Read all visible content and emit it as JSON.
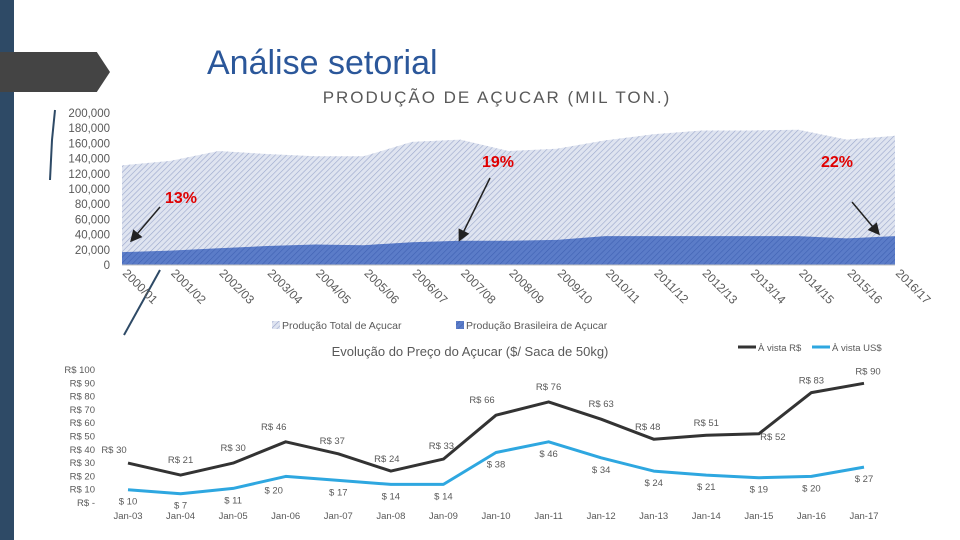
{
  "slide": {
    "title": "Análise setorial"
  },
  "colors": {
    "total": "#b8c2dd",
    "brazil": "#4f72c4",
    "avista_rs": "#333333",
    "avista_us": "#2ea7e0",
    "pct": "#e00000",
    "title": "#2b579a"
  },
  "chart_data": [
    {
      "type": "area",
      "title": "PRODUÇÃO DE AÇUCAR (MIL TON.)",
      "categories": [
        "2000/01",
        "2001/02",
        "2002/03",
        "2003/04",
        "2004/05",
        "2005/06",
        "2006/07",
        "2007/08",
        "2008/09",
        "2009/10",
        "2010/11",
        "2011/12",
        "2012/13",
        "2013/14",
        "2014/15",
        "2015/16",
        "2016/17"
      ],
      "series": [
        {
          "name": "Produção Total de Açucar",
          "values": [
            131000,
            137000,
            150000,
            146000,
            143000,
            143000,
            162000,
            165000,
            150000,
            153000,
            164000,
            172000,
            177000,
            177000,
            178000,
            165000,
            170000
          ]
        },
        {
          "name": "Produção Brasileira de Açucar",
          "values": [
            17000,
            19000,
            22000,
            25000,
            27000,
            26000,
            30000,
            32000,
            32000,
            33000,
            38000,
            38000,
            38000,
            38000,
            38000,
            35000,
            38000
          ]
        }
      ],
      "ylim": [
        0,
        200000
      ],
      "y_ticks": [
        "200,000",
        "180,000",
        "160,000",
        "140,000",
        "120,000",
        "100,000",
        "80,000",
        "60,000",
        "40,000",
        "20,000",
        "0"
      ],
      "annotations": [
        "13%",
        "19%",
        "22%"
      ],
      "legend": "bottom"
    },
    {
      "type": "line",
      "title": "Evolução do Preço do Açucar ($/ Saca de 50kg)",
      "categories": [
        "Jan-03",
        "Jan-04",
        "Jan-05",
        "Jan-06",
        "Jan-07",
        "Jan-08",
        "Jan-09",
        "Jan-10",
        "Jan-11",
        "Jan-12",
        "Jan-13",
        "Jan-14",
        "Jan-15",
        "Jan-16",
        "Jan-17"
      ],
      "series": [
        {
          "name": "À vista R$",
          "values": [
            30,
            21,
            30,
            46,
            37,
            24,
            33,
            66,
            76,
            63,
            48,
            51,
            52,
            83,
            90
          ],
          "labels": [
            "R$ 30",
            "R$ 21",
            "R$ 30",
            "R$ 46",
            "R$ 37",
            "R$ 24",
            "R$ 33",
            "R$ 66",
            "R$ 76",
            "R$ 63",
            "R$ 48",
            "R$ 51",
            "R$ 52",
            "R$ 83",
            "R$ 90"
          ]
        },
        {
          "name": "À vista US$",
          "values": [
            10,
            7,
            11,
            20,
            17,
            14,
            14,
            38,
            46,
            34,
            24,
            21,
            19,
            20,
            27
          ],
          "labels": [
            "$ 10",
            "$ 7",
            "$ 11",
            "$ 20",
            "$ 17",
            "$ 14",
            "$ 14",
            "$ 38",
            "$ 46",
            "$ 34",
            "$ 24",
            "$ 21",
            "$ 19",
            "$ 20",
            "$ 27"
          ]
        }
      ],
      "ylim": [
        0,
        100
      ],
      "y_ticks": [
        "R$ 100",
        "R$ 90",
        "R$ 80",
        "R$ 70",
        "R$ 60",
        "R$ 50",
        "R$ 40",
        "R$ 30",
        "R$ 20",
        "R$ 10",
        "R$ -"
      ],
      "legend": "top-right"
    }
  ]
}
